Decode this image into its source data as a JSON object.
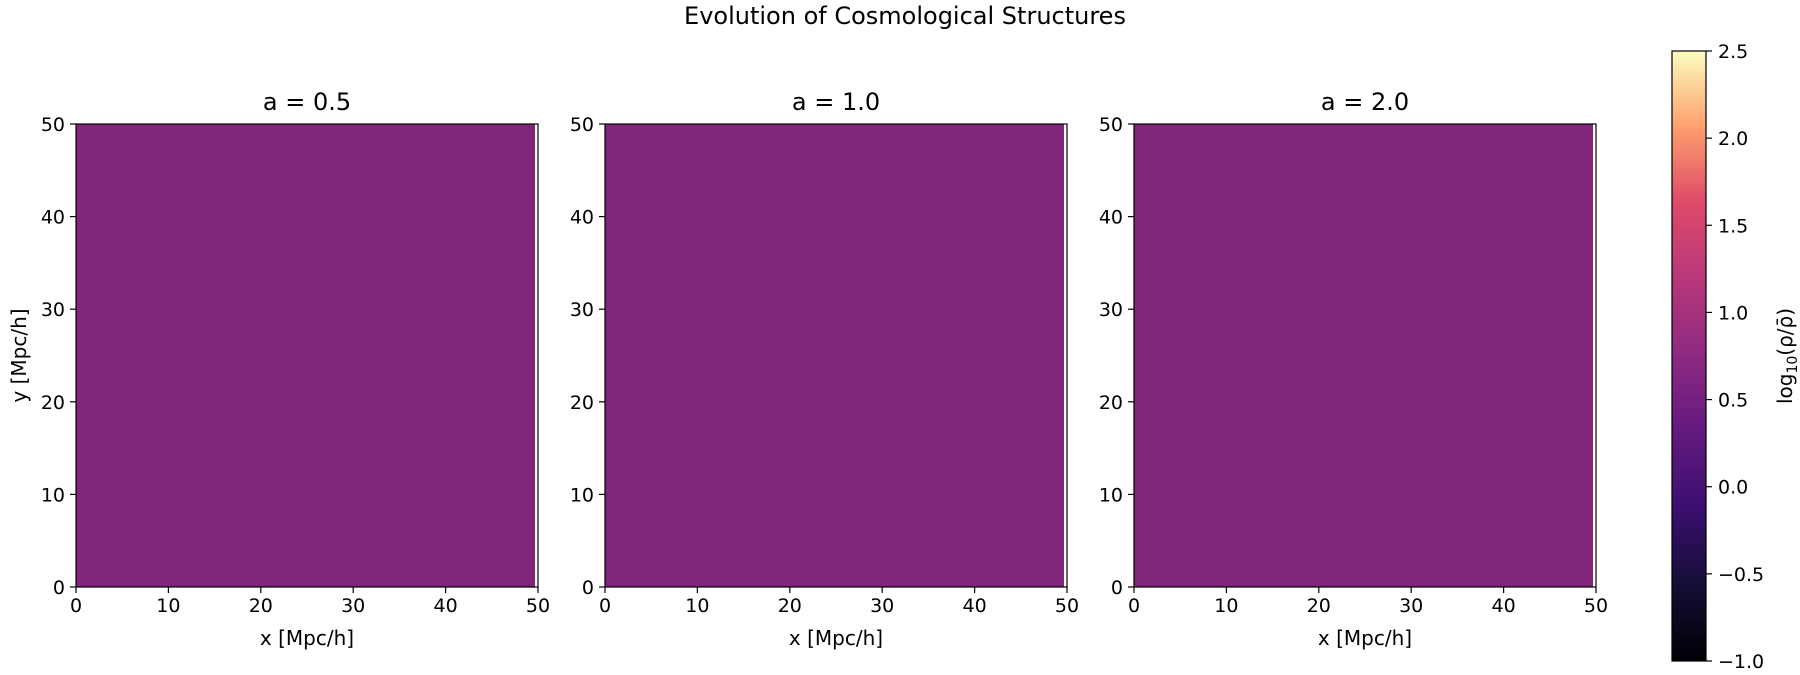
{
  "figure": {
    "title": "Evolution of Cosmological Structures"
  },
  "chart_data": [
    {
      "type": "heatmap",
      "title": "a = 0.5",
      "xlabel": "x [Mpc/h]",
      "ylabel": "y [Mpc/h]",
      "xlim": [
        0,
        50
      ],
      "ylim": [
        0,
        50
      ],
      "xticks": [
        "0",
        "10",
        "20",
        "30",
        "40",
        "50"
      ],
      "yticks": [
        "0",
        "10",
        "20",
        "30",
        "40",
        "50"
      ],
      "field_value": 0.3,
      "fill_color": "#81257b"
    },
    {
      "type": "heatmap",
      "title": "a = 1.0",
      "xlabel": "x [Mpc/h]",
      "ylabel": "",
      "xlim": [
        0,
        50
      ],
      "ylim": [
        0,
        50
      ],
      "xticks": [
        "0",
        "10",
        "20",
        "30",
        "40",
        "50"
      ],
      "yticks": [
        "0",
        "10",
        "20",
        "30",
        "40",
        "50"
      ],
      "field_value": 0.3,
      "fill_color": "#81257b"
    },
    {
      "type": "heatmap",
      "title": "a = 2.0",
      "xlabel": "x [Mpc/h]",
      "ylabel": "",
      "xlim": [
        0,
        50
      ],
      "ylim": [
        0,
        50
      ],
      "xticks": [
        "0",
        "10",
        "20",
        "30",
        "40",
        "50"
      ],
      "yticks": [
        "0",
        "10",
        "20",
        "30",
        "40",
        "50"
      ],
      "field_value": 0.3,
      "fill_color": "#81257b"
    }
  ],
  "colorbar": {
    "label": "log10(ρ/ρ̄)",
    "colormap": "magma",
    "range": [
      -1.0,
      2.5
    ],
    "ticks": [
      -1.0,
      -0.5,
      0.0,
      0.5,
      1.0,
      1.5,
      2.0,
      2.5
    ],
    "tick_labels": [
      "−1.0",
      "−0.5",
      "0.0",
      "0.5",
      "1.0",
      "1.5",
      "2.0",
      "2.5"
    ]
  }
}
